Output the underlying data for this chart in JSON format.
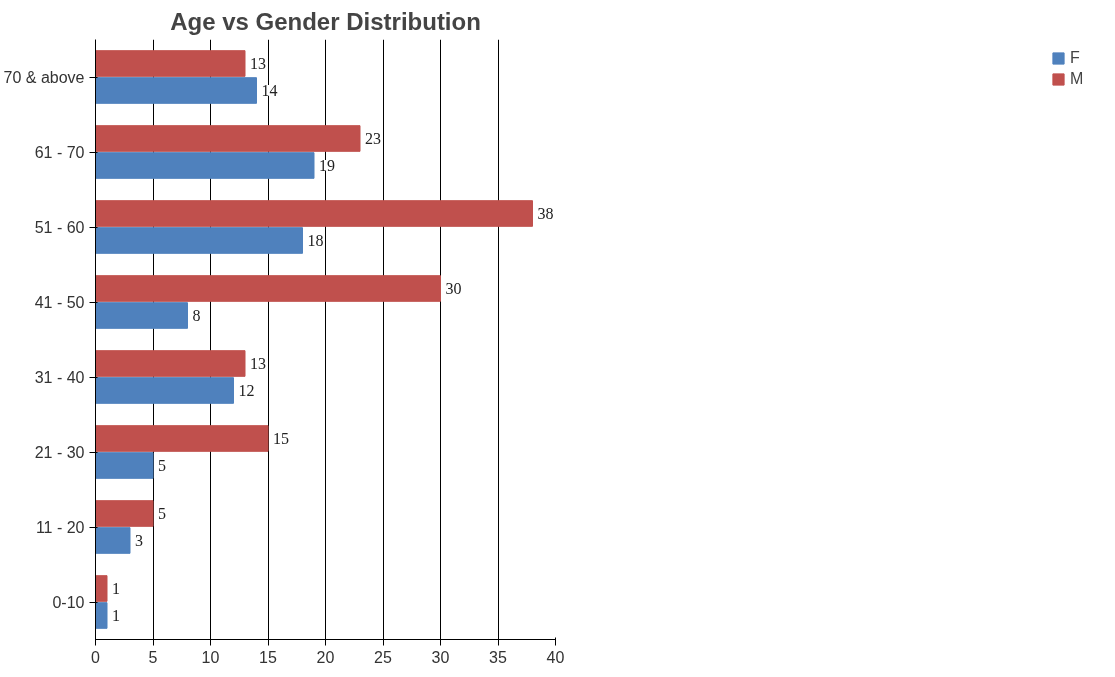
{
  "chart_data": {
    "type": "bar",
    "orientation": "horizontal",
    "title": "Age vs Gender Distribution",
    "categories": [
      "70 & above",
      "61 - 70",
      "51 - 60",
      "41 - 50",
      "31 - 40",
      "21 - 30",
      "11 - 20",
      "0-10"
    ],
    "series": [
      {
        "name": "F",
        "color": "#4f81bd",
        "values": [
          14,
          19,
          18,
          8,
          12,
          5,
          3,
          1
        ]
      },
      {
        "name": "M",
        "color": "#c0504d",
        "values": [
          13,
          23,
          38,
          30,
          13,
          15,
          5,
          1
        ]
      }
    ],
    "xlim": [
      0,
      40
    ],
    "xticks": [
      0,
      5,
      10,
      15,
      20,
      25,
      30,
      35,
      40
    ],
    "grid": "x",
    "legend": "right",
    "data_labels": true
  }
}
